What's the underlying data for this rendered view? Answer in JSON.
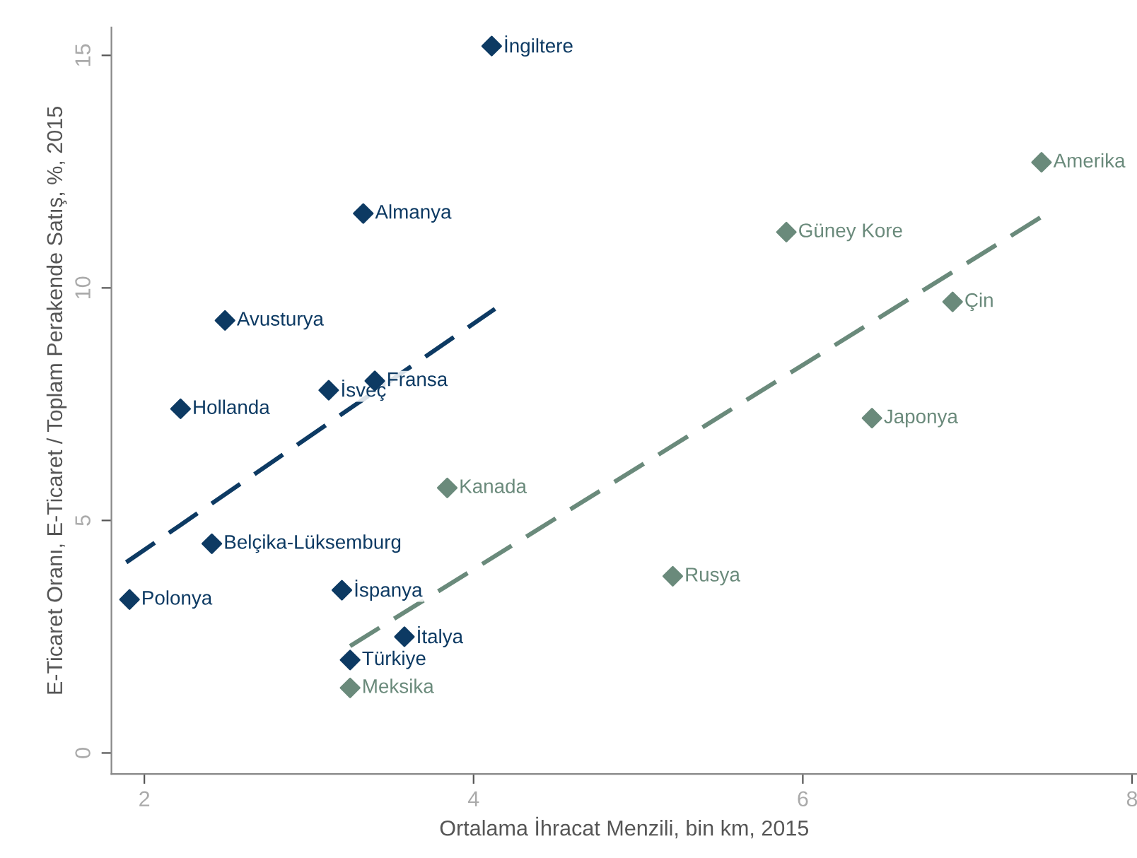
{
  "chart_data": {
    "type": "scatter",
    "xlabel": "Ortalama İhracat Menzili, bin km, 2015",
    "ylabel": "E-Ticaret Oranı, E-Ticaret / Toplam Perakende Satış, %, 2015",
    "xlim": [
      1.8,
      8.03
    ],
    "ylim": [
      -0.45,
      15.6
    ],
    "xticks": [
      2,
      4,
      6,
      8
    ],
    "yticks": [
      0,
      5,
      10,
      15
    ],
    "marker": "diamond",
    "series": [
      {
        "color": "#0d3a63",
        "x": [
          4.11,
          3.33,
          2.49,
          3.12,
          3.4,
          2.22,
          2.41,
          1.91,
          3.2,
          3.58,
          3.25
        ],
        "values": [
          15.2,
          11.6,
          9.3,
          7.8,
          8.0,
          7.4,
          4.5,
          3.3,
          3.5,
          2.5,
          2.0
        ]
      },
      {
        "color": "#6a8a7b",
        "x": [
          3.84,
          3.25,
          5.21,
          6.42,
          6.91,
          5.9,
          7.45
        ],
        "values": [
          5.7,
          1.4,
          3.8,
          7.2,
          9.7,
          11.2,
          12.7
        ]
      },
      {
        "type": "line",
        "color": "#0d3a63",
        "line_style": "dashed",
        "marker": "none",
        "x": [
          1.89,
          4.13
        ],
        "values": [
          4.1,
          9.55
        ]
      },
      {
        "type": "line",
        "color": "#6a8a7b",
        "line_style": "dashed",
        "marker": "none",
        "x": [
          3.25,
          7.46
        ],
        "values": [
          2.3,
          11.55
        ]
      }
    ],
    "annotations": [
      {
        "text": "İngiltere",
        "x": 4.11,
        "y": 15.2
      },
      {
        "text": "Almanya",
        "x": 3.33,
        "y": 11.6
      },
      {
        "text": "Avusturya",
        "x": 2.49,
        "y": 9.3
      },
      {
        "text": "İsveç",
        "x": 3.12,
        "y": 7.8
      },
      {
        "text": "Fransa",
        "x": 3.4,
        "y": 8.0
      },
      {
        "text": "Hollanda",
        "x": 2.22,
        "y": 7.4
      },
      {
        "text": "Belçika-Lüksemburg",
        "x": 2.41,
        "y": 4.5
      },
      {
        "text": "Polonya",
        "x": 1.91,
        "y": 3.3
      },
      {
        "text": "İspanya",
        "x": 3.2,
        "y": 3.5
      },
      {
        "text": "İtalya",
        "x": 3.58,
        "y": 2.5
      },
      {
        "text": "Türkiye",
        "x": 3.25,
        "y": 2.0
      },
      {
        "text": "Kanada",
        "x": 3.84,
        "y": 5.7
      },
      {
        "text": "Meksika",
        "x": 3.25,
        "y": 1.4
      },
      {
        "text": "Rusya",
        "x": 5.21,
        "y": 3.8
      },
      {
        "text": "Japonya",
        "x": 6.42,
        "y": 7.2
      },
      {
        "text": "Çin",
        "x": 6.91,
        "y": 9.7
      },
      {
        "text": "Güney Kore",
        "x": 5.9,
        "y": 11.2
      },
      {
        "text": "Amerika",
        "x": 7.45,
        "y": 12.7
      }
    ]
  }
}
